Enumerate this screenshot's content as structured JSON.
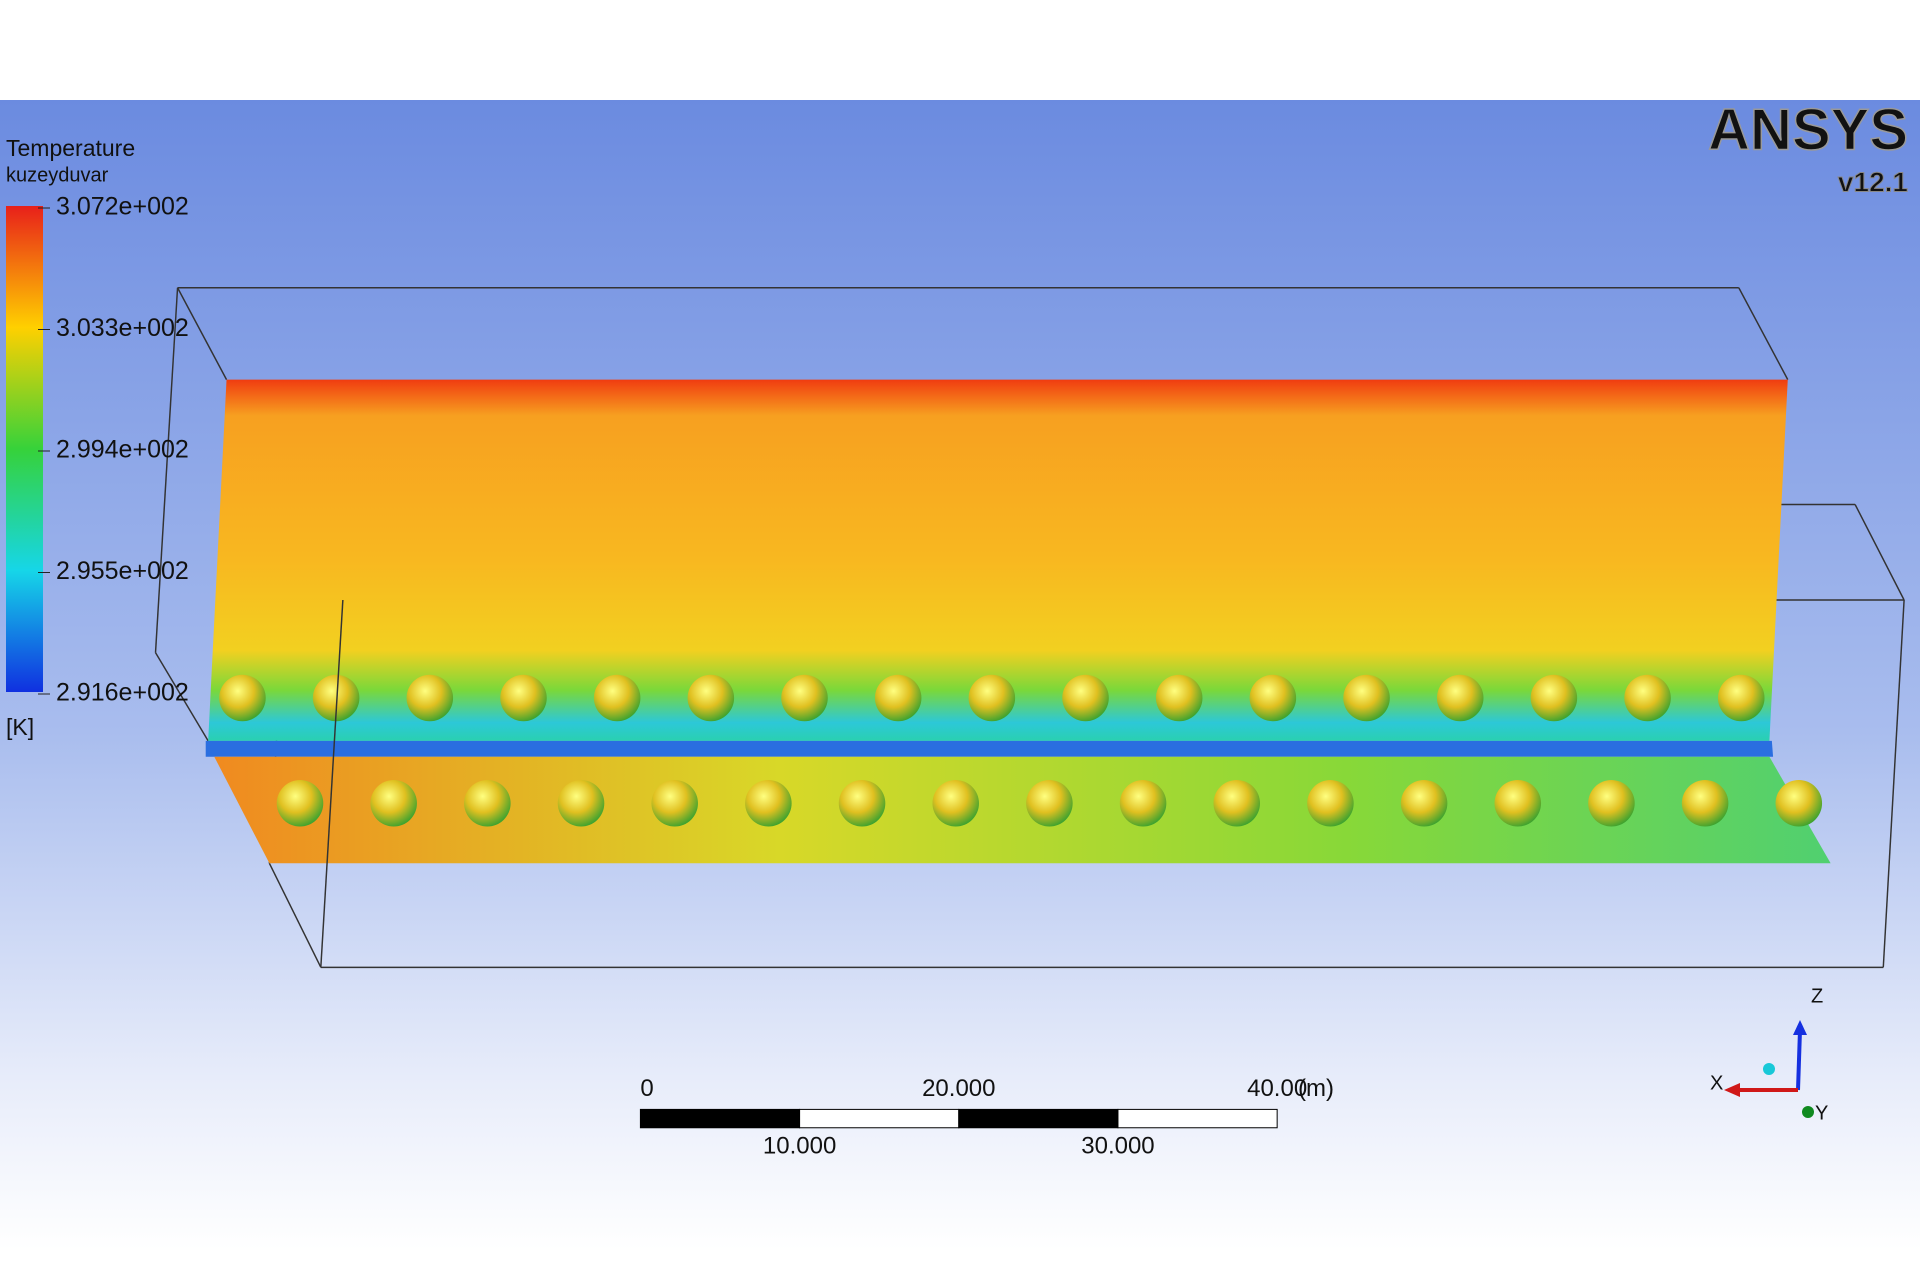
{
  "legend": {
    "title": "Temperature",
    "subtitle": "kuzeyduvar",
    "labels": [
      "3.072e+002",
      "3.033e+002",
      "2.994e+002",
      "2.955e+002",
      "2.916e+002"
    ],
    "unit": "[K]"
  },
  "logo": {
    "brand": "ANSYS",
    "version": "v12.1"
  },
  "scale_bar": {
    "top_labels": [
      "0",
      "20.000",
      "40.00"
    ],
    "unit": "(m)",
    "bottom_labels": [
      "10.000",
      "30.000"
    ]
  },
  "triad": {
    "z": "Z",
    "x": "X",
    "y": "Y"
  }
}
